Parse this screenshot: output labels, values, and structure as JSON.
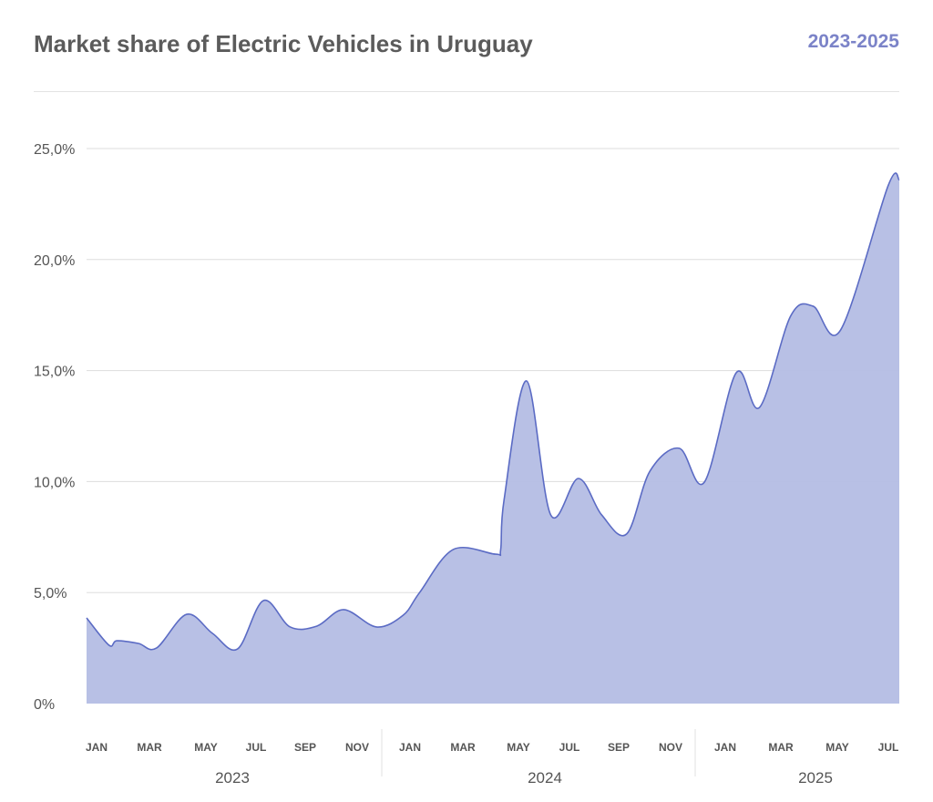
{
  "header": {
    "title": "Market share of Electric Vehicles in Uruguay",
    "range": "2023-2025"
  },
  "colors": {
    "fill": "#b4bde4",
    "line": "#5b6bc4",
    "accent": "#7b83c8",
    "grid": "#dddddd"
  },
  "chart_data": {
    "type": "area",
    "title": "Market share of Electric Vehicles in Uruguay",
    "subtitle": "2023-2025",
    "xlabel": "",
    "ylabel": "",
    "ylim": [
      0,
      25
    ],
    "xlim": [
      "2023-01-01",
      "2025-07-31"
    ],
    "grid": true,
    "y_ticks": [
      "0%",
      "5,0%",
      "10,0%",
      "15,0%",
      "20,0%",
      "25,0%"
    ],
    "y_tick_values": [
      0,
      5,
      10,
      15,
      20,
      25
    ],
    "month_ticks": [
      "JAN",
      "MAR",
      "MAY",
      "JUL",
      "SEP",
      "NOV",
      "JAN",
      "MAR",
      "MAY",
      "JUL",
      "SEP",
      "NOV",
      "JAN",
      "MAR",
      "MAY",
      "JUL"
    ],
    "year_ticks": [
      "2023",
      "2024",
      "2025"
    ],
    "x": [
      "2023-01-01",
      "2023-01-27",
      "2023-02-05",
      "2023-03-02",
      "2023-03-23",
      "2023-04-27",
      "2023-05-27",
      "2023-06-25",
      "2023-07-25",
      "2023-08-25",
      "2023-09-25",
      "2023-10-26",
      "2023-12-03",
      "2024-01-03",
      "2024-01-22",
      "2024-03-01",
      "2024-04-19",
      "2024-04-25",
      "2024-04-29",
      "2024-05-25",
      "2024-06-22",
      "2024-07-24",
      "2024-08-20",
      "2024-09-18",
      "2024-10-15",
      "2024-11-18",
      "2024-12-17",
      "2025-01-23",
      "2025-02-19",
      "2025-03-27",
      "2025-04-22",
      "2025-05-24",
      "2025-07-18",
      "2025-07-31"
    ],
    "values": [
      3.86,
      2.63,
      2.83,
      2.71,
      2.5,
      4.02,
      3.16,
      2.46,
      4.64,
      3.45,
      3.49,
      4.23,
      3.45,
      3.98,
      5.0,
      6.94,
      6.73,
      6.94,
      9.2,
      14.53,
      8.5,
      10.14,
      8.5,
      7.64,
      10.47,
      11.5,
      9.97,
      14.9,
      13.34,
      17.45,
      17.9,
      16.83,
      23.32,
      23.6
    ]
  }
}
